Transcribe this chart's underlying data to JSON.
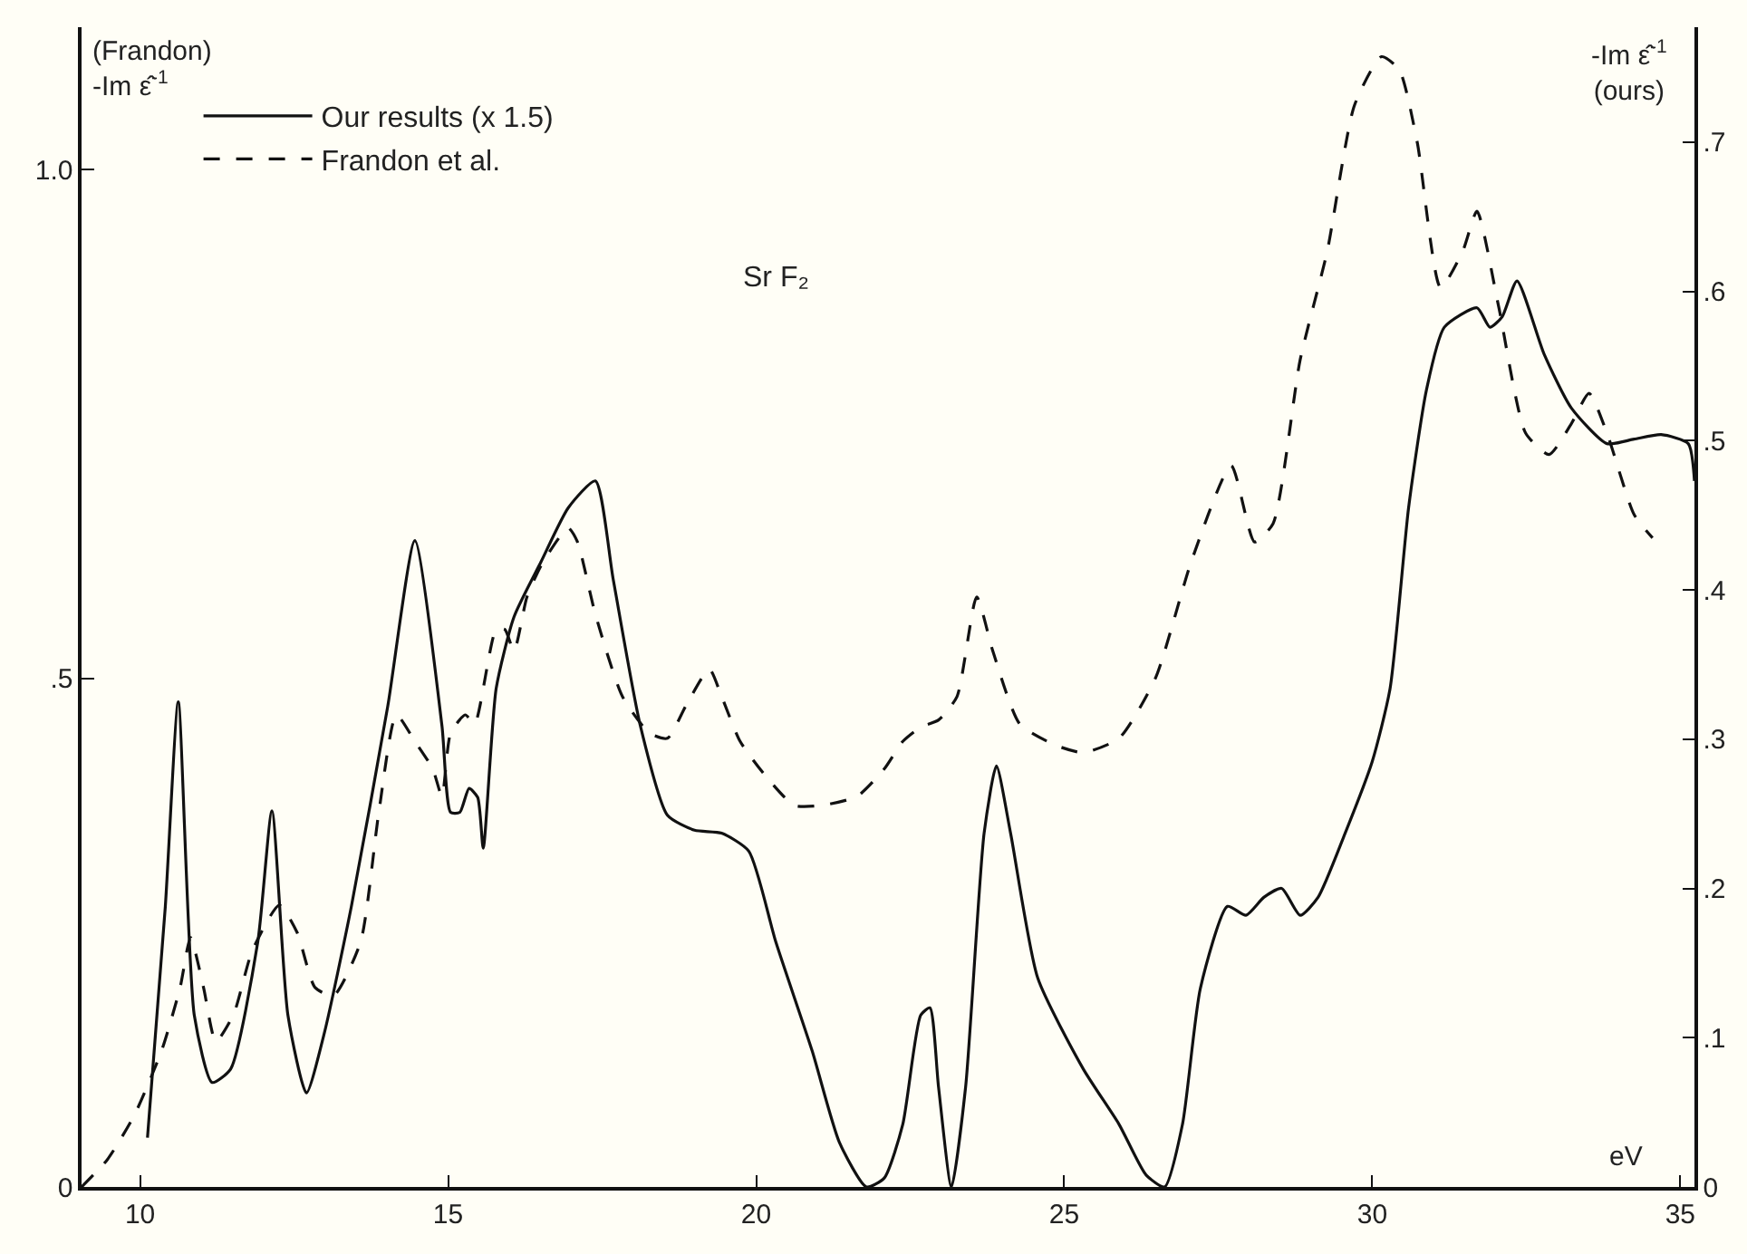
{
  "chart_data": {
    "type": "line",
    "xlabel": "eV",
    "ylabel": "(Frandon) -Im ε̂$^{-1}$",
    "y2label": "-Im ε̂$^{-1}$ (ours)",
    "annotations": [
      "Sr F₂"
    ],
    "xlim": [
      9.05,
      35.23
    ],
    "xticks": [
      10,
      15,
      20,
      25,
      30,
      35
    ],
    "ylim": [
      0,
      1.14
    ],
    "yticks": [
      0,
      {
        "value": 0.5,
        "label": ".5"
      },
      {
        "value": 1.0,
        "label": "1.0"
      }
    ],
    "y2lim": [
      0,
      0.777
    ],
    "y2ticks": [
      0,
      {
        "value": 0.1,
        "label": ".1"
      },
      {
        "value": 0.2,
        "label": ".2"
      },
      {
        "value": 0.3,
        "label": ".3"
      },
      {
        "value": 0.4,
        "label": ".4"
      },
      {
        "value": 0.5,
        "label": ".5"
      },
      {
        "value": 0.6,
        "label": ".6"
      },
      {
        "value": 0.7,
        "label": ".7"
      }
    ],
    "grid": false,
    "legend": "top left",
    "marker": "none",
    "series": [
      {
        "name": "Our results (x 1.5)",
        "color": "#111111",
        "axis": "y2",
        "line_style": "solid",
        "x": [
          10.12,
          10.41,
          10.62,
          10.88,
          11.17,
          11.47,
          11.91,
          12.14,
          12.4,
          12.7,
          12.99,
          13.43,
          14.02,
          14.46,
          14.9,
          15.04,
          15.19,
          15.34,
          15.48,
          15.57,
          15.78,
          16.07,
          16.51,
          16.95,
          17.39,
          17.68,
          18.12,
          18.56,
          19.0,
          19.44,
          19.88,
          20.32,
          20.91,
          21.35,
          21.79,
          22.08,
          22.38,
          22.67,
          22.82,
          22.96,
          23.17,
          23.4,
          23.7,
          23.9,
          24.13,
          24.57,
          25.31,
          25.89,
          26.33,
          26.63,
          26.92,
          27.21,
          27.65,
          27.95,
          28.24,
          28.53,
          28.83,
          29.12,
          29.56,
          30.0,
          30.29,
          30.59,
          30.88,
          31.17,
          31.7,
          31.91,
          32.11,
          32.35,
          32.79,
          33.23,
          33.81,
          34.25,
          34.69,
          35.13,
          35.23
        ],
        "values": [
          0.033,
          0.188,
          0.325,
          0.115,
          0.07,
          0.079,
          0.164,
          0.252,
          0.115,
          0.063,
          0.103,
          0.188,
          0.322,
          0.433,
          0.309,
          0.251,
          0.251,
          0.267,
          0.261,
          0.227,
          0.334,
          0.382,
          0.419,
          0.455,
          0.473,
          0.407,
          0.309,
          0.249,
          0.239,
          0.237,
          0.225,
          0.164,
          0.091,
          0.03,
          0.0,
          0.006,
          0.042,
          0.115,
          0.12,
          0.067,
          0.0,
          0.067,
          0.237,
          0.282,
          0.237,
          0.14,
          0.079,
          0.042,
          0.008,
          0.0,
          0.042,
          0.133,
          0.188,
          0.182,
          0.194,
          0.2,
          0.182,
          0.194,
          0.237,
          0.285,
          0.334,
          0.455,
          0.534,
          0.576,
          0.589,
          0.576,
          0.583,
          0.607,
          0.558,
          0.522,
          0.498,
          0.501,
          0.504,
          0.498,
          0.473
        ]
      },
      {
        "name": "Frandon et al.",
        "color": "#111111",
        "line_style": "dashed",
        "x": [
          9.05,
          9.47,
          9.91,
          10.35,
          10.65,
          10.82,
          11.03,
          11.23,
          11.52,
          11.82,
          12.26,
          12.55,
          12.84,
          13.14,
          13.58,
          13.87,
          14.16,
          14.46,
          14.75,
          14.9,
          15.04,
          15.28,
          15.43,
          15.78,
          15.92,
          16.07,
          16.28,
          16.51,
          16.8,
          16.95,
          17.1,
          17.39,
          17.83,
          18.27,
          18.56,
          18.86,
          19.24,
          19.44,
          19.74,
          20.18,
          20.62,
          21.06,
          21.64,
          22.08,
          22.38,
          22.67,
          22.96,
          23.26,
          23.58,
          23.84,
          24.28,
          24.87,
          25.31,
          25.89,
          26.48,
          27.07,
          27.71,
          28.09,
          28.39,
          28.83,
          29.27,
          29.71,
          30.15,
          30.44,
          30.73,
          31.11,
          31.47,
          31.7,
          32.05,
          32.49,
          32.87,
          33.23,
          33.52,
          33.81,
          34.25,
          34.55
        ],
        "values": [
          0.0,
          0.027,
          0.071,
          0.134,
          0.196,
          0.245,
          0.196,
          0.143,
          0.17,
          0.232,
          0.277,
          0.25,
          0.196,
          0.188,
          0.241,
          0.366,
          0.464,
          0.438,
          0.411,
          0.384,
          0.446,
          0.464,
          0.455,
          0.548,
          0.548,
          0.527,
          0.58,
          0.611,
          0.638,
          0.648,
          0.634,
          0.563,
          0.482,
          0.446,
          0.441,
          0.473,
          0.509,
          0.482,
          0.438,
          0.402,
          0.375,
          0.375,
          0.384,
          0.411,
          0.438,
          0.452,
          0.459,
          0.482,
          0.58,
          0.527,
          0.455,
          0.434,
          0.427,
          0.441,
          0.5,
          0.616,
          0.709,
          0.634,
          0.652,
          0.813,
          0.92,
          1.063,
          1.111,
          1.098,
          1.027,
          0.884,
          0.92,
          0.959,
          0.866,
          0.741,
          0.72,
          0.75,
          0.78,
          0.741,
          0.661,
          0.638
        ]
      }
    ]
  }
}
